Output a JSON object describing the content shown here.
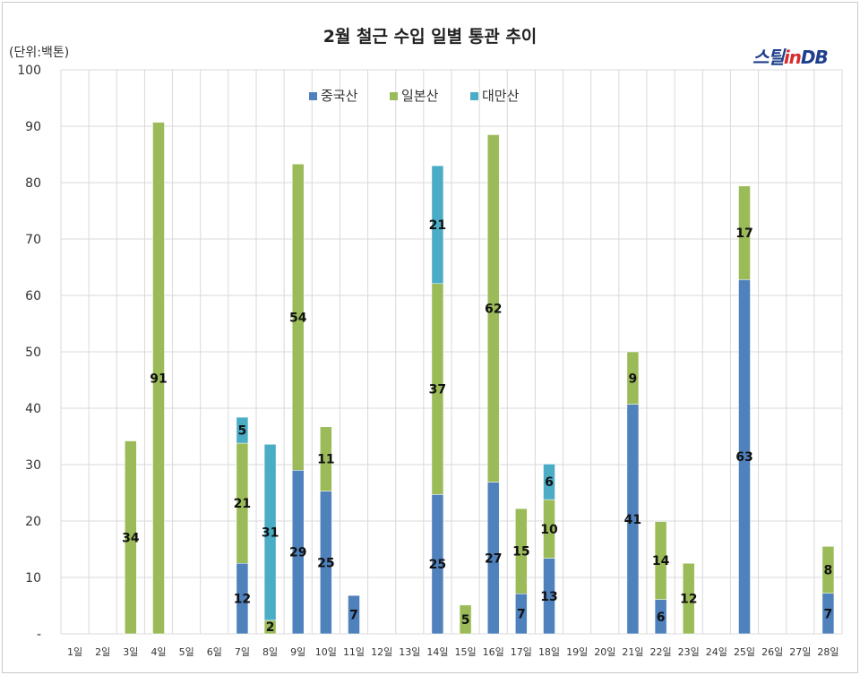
{
  "header": {
    "title": "2월 철근 수입 일별 통관 추이",
    "unit": "(단위:백톤)",
    "logo_main": "스틸",
    "logo_in": "in",
    "logo_db": "DB"
  },
  "chart_data": {
    "type": "bar",
    "stacked": true,
    "title": "2월 철근 수입 일별 통관 추이",
    "ylabel": "(단위:백톤)",
    "ylim": [
      0,
      100
    ],
    "y_ticks": [
      "-",
      "10",
      "20",
      "30",
      "40",
      "50",
      "60",
      "70",
      "80",
      "90",
      "100"
    ],
    "grid": true,
    "legend_position": "top-center",
    "categories": [
      "1일",
      "2일",
      "3일",
      "4일",
      "5일",
      "6일",
      "7일",
      "8일",
      "9일",
      "10일",
      "11일",
      "12일",
      "13일",
      "14일",
      "15일",
      "16일",
      "17일",
      "18일",
      "19일",
      "20일",
      "21일",
      "22일",
      "23일",
      "24일",
      "25일",
      "26일",
      "27일",
      "28일"
    ],
    "series": [
      {
        "name": "중국산",
        "color": "#4f81bd",
        "values": [
          0,
          0,
          0,
          0,
          0,
          0,
          12.5,
          0,
          29,
          25.3,
          6.8,
          0,
          0,
          24.7,
          0,
          26.9,
          7.1,
          13.4,
          0,
          0,
          40.7,
          6.1,
          0,
          0,
          62.8,
          0,
          0,
          7.2
        ],
        "labels": [
          "",
          "",
          "",
          "",
          "",
          "",
          "12",
          "",
          "29",
          "25",
          "7",
          "",
          "",
          "25",
          "",
          "27",
          "7",
          "13",
          "",
          "",
          "41",
          "6",
          "",
          "",
          "63",
          "",
          "",
          "7"
        ]
      },
      {
        "name": "일본산",
        "color": "#9bbb59",
        "values": [
          0,
          0,
          34.2,
          90.7,
          0,
          0,
          21.3,
          2.4,
          54.3,
          11.4,
          0,
          0,
          0,
          37.4,
          5.1,
          61.6,
          15.1,
          10.4,
          0,
          0,
          9.3,
          13.8,
          12.5,
          0,
          16.6,
          0,
          0,
          8.3
        ],
        "labels": [
          "",
          "",
          "34",
          "91",
          "",
          "",
          "21",
          "2",
          "54",
          "11",
          "",
          "",
          "",
          "37",
          "5",
          "62",
          "15",
          "10",
          "",
          "",
          "9",
          "14",
          "12",
          "",
          "17",
          "",
          "",
          "8"
        ]
      },
      {
        "name": "대만산",
        "color": "#4bacc6",
        "values": [
          0,
          0,
          0,
          0,
          0,
          0,
          4.6,
          31.2,
          0,
          0,
          0,
          0,
          0,
          20.9,
          0,
          0,
          0,
          6.3,
          0,
          0,
          0,
          0,
          0,
          0,
          0,
          0,
          0,
          0
        ],
        "labels": [
          "",
          "",
          "",
          "",
          "",
          "",
          "5",
          "31",
          "",
          "",
          "",
          "",
          "",
          "21",
          "",
          "",
          "",
          "6",
          "",
          "",
          "",
          "",
          "",
          "",
          "",
          "",
          "",
          ""
        ]
      }
    ]
  }
}
